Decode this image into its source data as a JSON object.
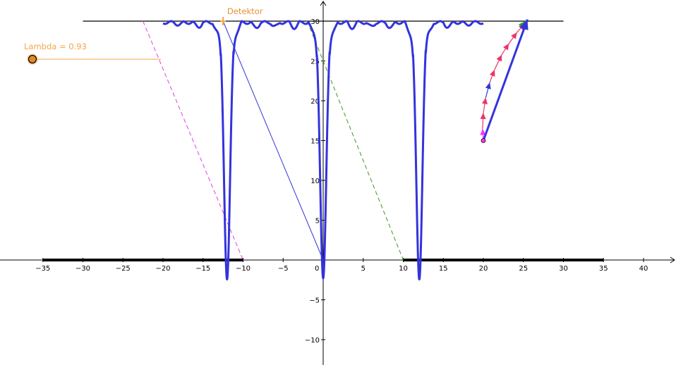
{
  "slider": {
    "label": "Lambda = 0.93",
    "value": 0.93
  },
  "detector": {
    "label": "Detektor",
    "x": -12.5,
    "y": 30
  },
  "colors": {
    "curve": "#3333dd",
    "slider": "#f4a64a",
    "detector_text": "#e69138",
    "magenta_line": "#e040e0",
    "green_line": "#3a9a1a",
    "phasor_main": "#3333dd",
    "phasor_red": "#ee3366",
    "phasor_green": "#339933",
    "phasor_magenta": "#ff33ff",
    "axis": "#000000"
  },
  "chart_data": {
    "type": "line",
    "title": "",
    "xlabel": "",
    "ylabel": "",
    "xlim": [
      -40,
      44
    ],
    "ylim": [
      -13,
      31.5
    ],
    "grid": false,
    "x_ticks": [
      -35,
      -30,
      -25,
      -20,
      -15,
      -10,
      -5,
      0,
      5,
      10,
      15,
      20,
      25,
      30,
      35,
      40
    ],
    "y_ticks": [
      -10,
      -5,
      5,
      10,
      15,
      20,
      25,
      30
    ],
    "series": [
      {
        "kind": "intensity_curve",
        "x_range": [
          -20,
          20
        ],
        "baseline": 30,
        "dips": [
          {
            "center": -12,
            "min": -2.3
          },
          {
            "center": 0,
            "min": -2.3
          },
          {
            "center": 12,
            "min": -2.3
          }
        ]
      },
      {
        "kind": "segment",
        "points": [
          [
            -30,
            30
          ],
          [
            30,
            30
          ]
        ]
      },
      {
        "kind": "thick_segments",
        "segments": [
          [
            [
              -35,
              0
            ],
            [
              -10,
              0
            ]
          ],
          [
            [
              10,
              0
            ],
            [
              35,
              0
            ]
          ]
        ]
      },
      {
        "kind": "segment",
        "points": [
          [
            -12.5,
            30
          ],
          [
            0,
            0
          ]
        ]
      },
      {
        "kind": "dashed_segment",
        "points": [
          [
            -22.5,
            30
          ],
          [
            -10,
            0
          ]
        ]
      },
      {
        "kind": "dashed_segment",
        "points": [
          [
            -2,
            30
          ],
          [
            10,
            0
          ]
        ]
      },
      {
        "kind": "phasor_arrow",
        "points": [
          [
            20,
            15
          ],
          [
            25.5,
            30.2
          ]
        ]
      },
      {
        "kind": "phasor_chain",
        "origin": [
          20,
          15
        ],
        "points": [
          [
            20,
            15
          ],
          [
            19.9,
            16.5
          ],
          [
            20,
            18.5
          ],
          [
            20.3,
            20.4
          ],
          [
            20.8,
            22.3
          ],
          [
            21.4,
            23.9
          ],
          [
            22.3,
            25.8
          ],
          [
            23.2,
            27.2
          ],
          [
            24.2,
            28.6
          ],
          [
            25.2,
            29.7
          ],
          [
            25.6,
            30.2
          ]
        ]
      }
    ]
  }
}
